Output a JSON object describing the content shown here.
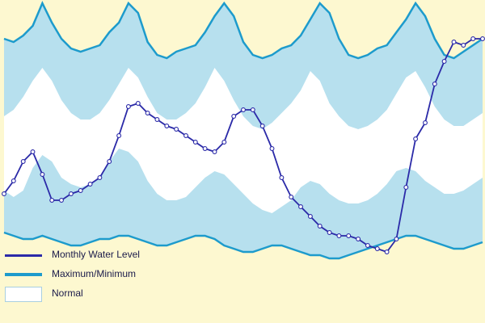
{
  "chart_data": {
    "type": "area",
    "title": "",
    "xlabel": "",
    "ylabel": "",
    "x": [
      0,
      1,
      2,
      3,
      4,
      5,
      6,
      7,
      8,
      9,
      10,
      11,
      12,
      13,
      14,
      15,
      16,
      17,
      18,
      19,
      20,
      21,
      22,
      23,
      24,
      25,
      26,
      27,
      28,
      29,
      30,
      31,
      32,
      33,
      34,
      35,
      36,
      37,
      38,
      39,
      40,
      41,
      42,
      43,
      44,
      45,
      46,
      47,
      48,
      49,
      50
    ],
    "ylim": [
      0,
      100
    ],
    "series": [
      {
        "name": "Monthly Water Level",
        "color": "#2b2aa8",
        "style": "line-with-markers",
        "values": [
          40,
          44,
          50,
          53,
          46,
          38,
          38,
          40,
          41,
          43,
          45,
          50,
          58,
          67,
          68,
          65,
          63,
          61,
          60,
          58,
          56,
          54,
          53,
          56,
          64,
          66,
          66,
          61,
          54,
          45,
          39,
          36,
          33,
          30,
          28,
          27,
          27,
          26,
          24,
          23,
          22,
          26,
          42,
          57,
          62,
          74,
          81,
          87,
          86,
          88,
          88
        ]
      },
      {
        "name": "Maximum",
        "color": "#1d9bcc",
        "style": "line",
        "values": [
          88,
          87,
          89,
          92,
          99,
          93,
          88,
          85,
          84,
          85,
          86,
          90,
          93,
          99,
          96,
          87,
          83,
          82,
          84,
          85,
          86,
          90,
          95,
          99,
          95,
          87,
          83,
          82,
          83,
          85,
          86,
          89,
          94,
          99,
          96,
          88,
          83,
          82,
          83,
          85,
          86,
          90,
          94,
          99,
          95,
          88,
          83,
          82,
          84,
          86,
          88
        ]
      },
      {
        "name": "Minimum",
        "color": "#1d9bcc",
        "style": "line",
        "values": [
          28,
          27,
          26,
          26,
          27,
          26,
          25,
          24,
          24,
          25,
          26,
          26,
          27,
          27,
          26,
          25,
          24,
          24,
          25,
          26,
          27,
          27,
          26,
          24,
          23,
          22,
          22,
          23,
          24,
          24,
          23,
          22,
          21,
          21,
          20,
          20,
          21,
          22,
          23,
          24,
          25,
          26,
          27,
          27,
          26,
          25,
          24,
          23,
          23,
          24,
          25
        ]
      },
      {
        "name": "Normal upper",
        "color": "#ffffff",
        "style": "band-edge",
        "values": [
          64,
          66,
          70,
          75,
          79,
          75,
          69,
          65,
          63,
          63,
          65,
          69,
          74,
          79,
          76,
          70,
          65,
          63,
          63,
          65,
          68,
          73,
          79,
          75,
          69,
          64,
          61,
          60,
          62,
          65,
          68,
          72,
          78,
          75,
          68,
          64,
          61,
          60,
          61,
          63,
          66,
          71,
          76,
          78,
          73,
          67,
          63,
          61,
          61,
          63,
          65
        ]
      },
      {
        "name": "Normal lower",
        "color": "#ffffff",
        "style": "band-edge",
        "values": [
          41,
          39,
          41,
          48,
          52,
          50,
          45,
          43,
          42,
          43,
          45,
          50,
          54,
          53,
          50,
          44,
          40,
          38,
          38,
          39,
          42,
          45,
          47,
          46,
          43,
          40,
          37,
          35,
          34,
          36,
          38,
          42,
          44,
          43,
          40,
          38,
          37,
          37,
          38,
          40,
          43,
          47,
          48,
          47,
          44,
          42,
          40,
          40,
          41,
          43,
          45
        ]
      }
    ],
    "legend": {
      "position": "bottom-left",
      "entries": [
        {
          "label": "Monthly Water Level",
          "style": "line",
          "color": "#2b2aa8"
        },
        {
          "label": "Maximum/Minimum",
          "style": "line",
          "color": "#1d9bcc"
        },
        {
          "label": "Normal",
          "style": "box",
          "color": "#ffffff"
        }
      ]
    },
    "grid": false
  },
  "colors": {
    "background": "#fdf8d0",
    "range_fill": "#b7e0ee",
    "normal_fill": "#ffffff",
    "max_min_line": "#1d9bcc",
    "level_line": "#2b2aa8"
  }
}
